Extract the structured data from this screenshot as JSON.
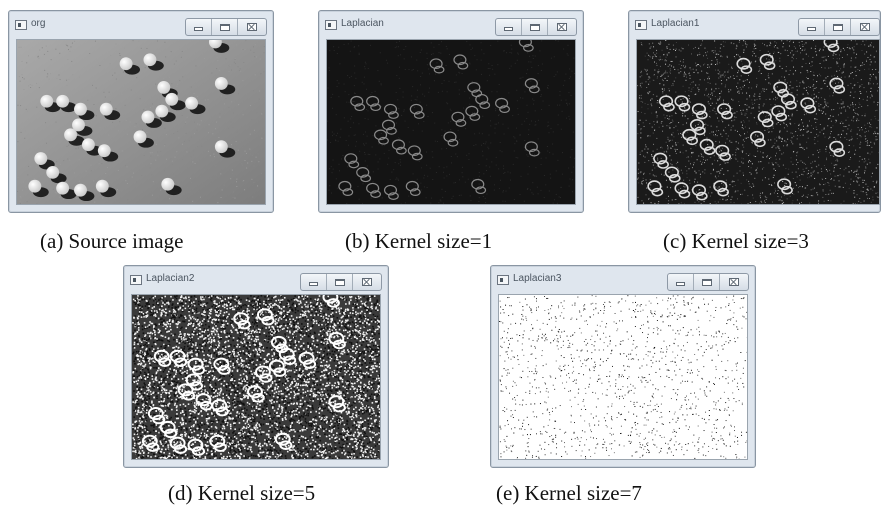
{
  "windows": [
    {
      "title": "org",
      "caption": "(a) Source image"
    },
    {
      "title": "Laplacian",
      "caption": "(b) Kernel size=1"
    },
    {
      "title": "Laplacian1",
      "caption": "(c) Kernel size=3"
    },
    {
      "title": "Laplacian2",
      "caption": "(d) Kernel size=5"
    },
    {
      "title": "Laplacian3",
      "caption": "(e) Kernel size=7"
    }
  ]
}
